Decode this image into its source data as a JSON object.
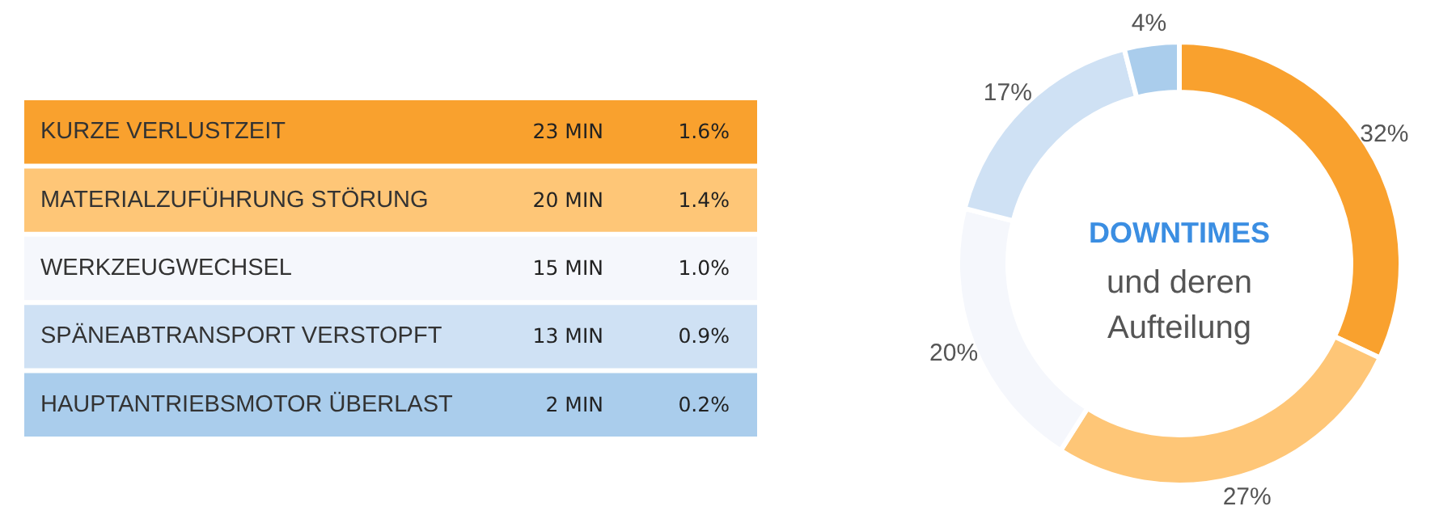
{
  "chart_data": [
    {
      "type": "other",
      "categories": [
        "KURZE VERLUSTZEIT",
        "MATERIALZUFÜHRUNG STÖRUNG",
        "WERKZEUGWECHSEL",
        "SPÄNEABTRANSPORT VERSTOPFT",
        "HAUPTANTRIEBSMOTOR ÜBERLAST"
      ],
      "colors": [
        "#f9a12e",
        "#fec677",
        "#f5f7fc",
        "#cfe1f4",
        "#aacdec"
      ],
      "annotations": [
        "23 MIN",
        "1.6%",
        "20 MIN",
        "1.4%",
        "15 MIN",
        "1.0%",
        "13 MIN",
        "0.9%",
        "2 MIN",
        "0.2%"
      ]
    },
    {
      "type": "donut",
      "title": "DOWNTIMES",
      "subtitle": "und deren Aufteilung",
      "categories": [
        null,
        null,
        null,
        null,
        null
      ],
      "values": [
        32,
        27,
        20,
        17,
        4
      ],
      "colors": [
        "#f9a12e",
        "#fec677",
        "#f5f7fc",
        "#cfe1f4",
        "#aacdec"
      ],
      "value_labels": [
        "32%",
        "27%",
        "20%",
        "17%",
        "4%"
      ]
    }
  ]
}
